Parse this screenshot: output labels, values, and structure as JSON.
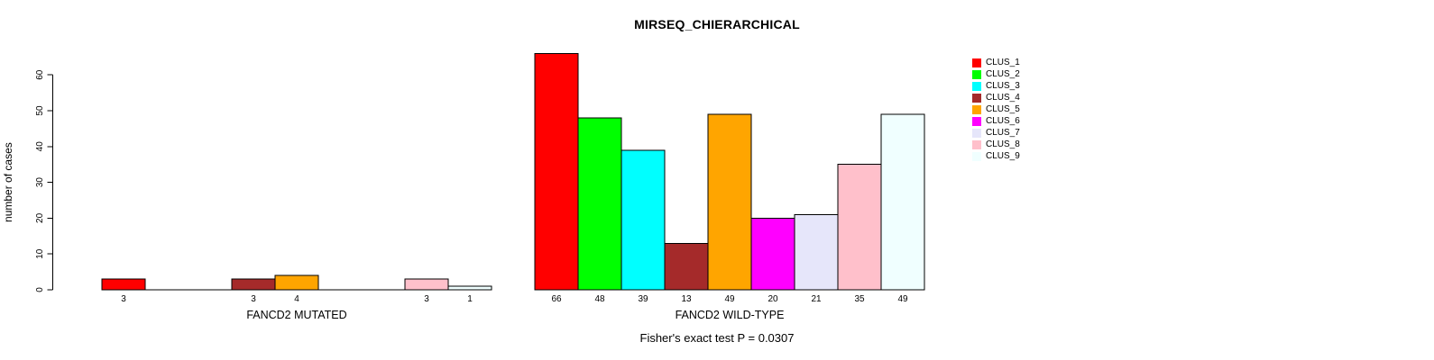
{
  "chart_data": {
    "type": "bar",
    "title": "MIRSEQ_CHIERARCHICAL",
    "ylabel": "number of cases",
    "annotation": "Fisher's exact test P = 0.0307",
    "ylim": [
      0,
      60
    ],
    "yticks": [
      0,
      10,
      20,
      30,
      40,
      50,
      60
    ],
    "grid": false,
    "legend_position": "top-right",
    "legend": [
      {
        "label": "CLUS_1",
        "color": "#FF0000"
      },
      {
        "label": "CLUS_2",
        "color": "#00FF00"
      },
      {
        "label": "CLUS_3",
        "color": "#00FFFF"
      },
      {
        "label": "CLUS_4",
        "color": "#A52A2A"
      },
      {
        "label": "CLUS_5",
        "color": "#FFA500"
      },
      {
        "label": "CLUS_6",
        "color": "#FF00FF"
      },
      {
        "label": "CLUS_7",
        "color": "#E6E6FA"
      },
      {
        "label": "CLUS_8",
        "color": "#FFC0CB"
      },
      {
        "label": "CLUS_9",
        "color": "#F0FFFF"
      }
    ],
    "groups": [
      {
        "label": "FANCD2 MUTATED",
        "values": [
          3,
          0,
          0,
          3,
          4,
          0,
          0,
          3,
          1
        ],
        "bar_labels": [
          "3",
          "",
          "",
          "3",
          "4",
          "",
          "",
          "3",
          "1"
        ]
      },
      {
        "label": "FANCD2 WILD-TYPE",
        "values": [
          66,
          48,
          39,
          13,
          49,
          20,
          21,
          35,
          49
        ],
        "bar_labels": [
          "66",
          "48",
          "39",
          "13",
          "49",
          "20",
          "21",
          "35",
          "49"
        ]
      }
    ]
  }
}
